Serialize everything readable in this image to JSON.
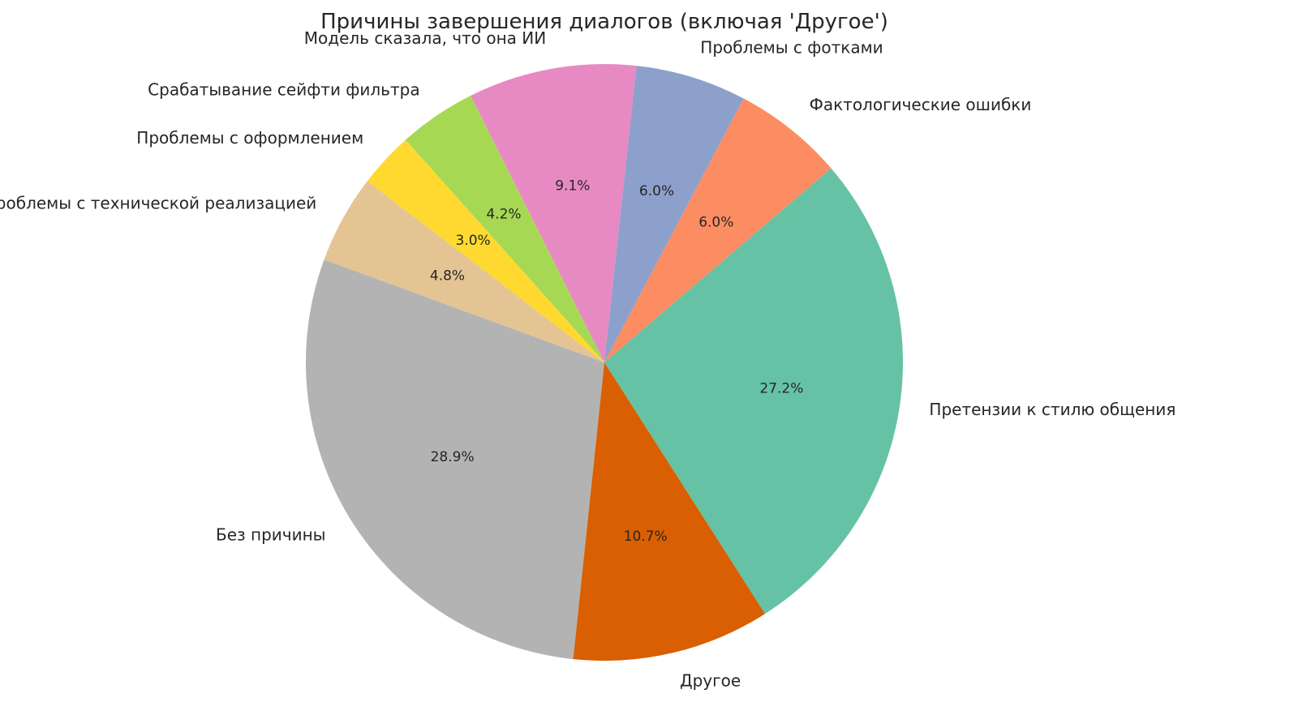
{
  "chart_data": {
    "type": "pie",
    "title": "Причины завершения диалогов (включая 'Другое')",
    "start_angle_deg": 264,
    "direction": "clockwise",
    "slices": [
      {
        "label": "Без причины",
        "value": 28.9,
        "pct_label": "28.9%",
        "color": "#b3b3b3"
      },
      {
        "label": "Проблемы с технической реализацией",
        "value": 4.8,
        "pct_label": "4.8%",
        "color": "#e5c494"
      },
      {
        "label": "Проблемы с оформлением",
        "value": 3.0,
        "pct_label": "3.0%",
        "color": "#ffd92f"
      },
      {
        "label": "Срабатывание сейфти фильтра",
        "value": 4.2,
        "pct_label": "4.2%",
        "color": "#a6d854"
      },
      {
        "label": "Модель сказала, что она ИИ",
        "value": 9.1,
        "pct_label": "9.1%",
        "color": "#e78ac3"
      },
      {
        "label": "Проблемы с фотками",
        "value": 6.0,
        "pct_label": "6.0%",
        "color": "#8da0cb"
      },
      {
        "label": "Фактологические ошибки",
        "value": 6.0,
        "pct_label": "6.0%",
        "color": "#fc8d62"
      },
      {
        "label": "Претензии к стилю общения",
        "value": 27.2,
        "pct_label": "27.2%",
        "color": "#66c2a5"
      },
      {
        "label": "Другое",
        "value": 10.7,
        "pct_label": "10.7%",
        "color": "#d95f02"
      }
    ]
  }
}
